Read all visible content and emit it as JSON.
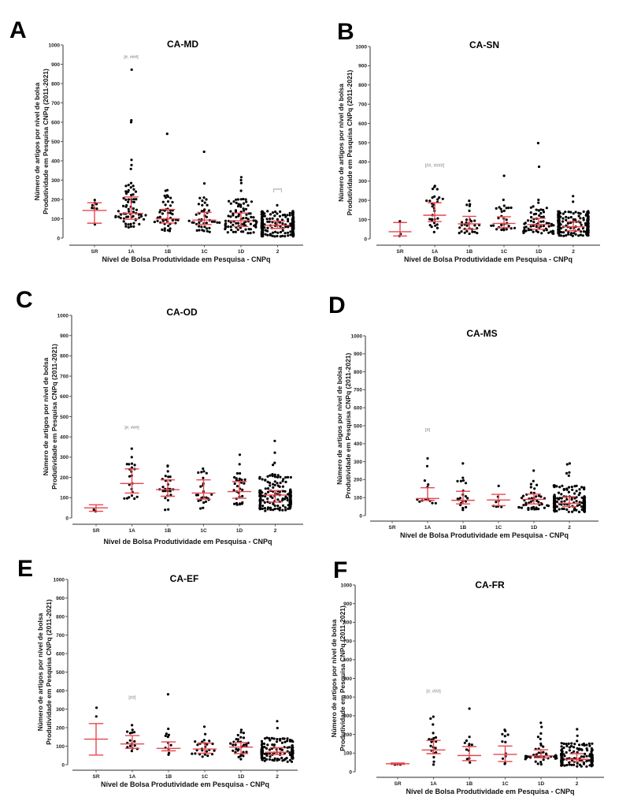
{
  "figure": {
    "y_axis_label_line1": "Número de artigos por nível de bolsa",
    "y_axis_label_line2": "Produtividade em Pesquisa CNPq (2011-2021)",
    "x_axis_label": "Nível de Bolsa Produtividade em Pesquisa - CNPq",
    "colors": {
      "points": "#000000",
      "error_bars": "#e8474f",
      "axis": "#555555",
      "annotation": "#777777"
    }
  },
  "chart_data": [
    {
      "panel": "A",
      "type": "scatter",
      "title": "CA-MD",
      "xlabel": "Nível de Bolsa Produtividade em Pesquisa - CNPq",
      "ylabel": "Número de artigos por nível de bolsa Produtividade em Pesquisa CNPq (2011-2021)",
      "categories": [
        "SR",
        "1A",
        "1B",
        "1C",
        "1D",
        "2"
      ],
      "ylim": [
        0,
        1000
      ],
      "yticks": [
        0,
        100,
        200,
        300,
        400,
        500,
        600,
        700,
        800,
        900,
        1000
      ],
      "median": [
        143,
        128,
        100,
        93,
        90,
        66
      ],
      "q1": [
        77,
        97,
        78,
        70,
        60,
        50
      ],
      "q3": [
        183,
        213,
        148,
        133,
        130,
        88
      ],
      "n_points": [
        8,
        70,
        50,
        45,
        90,
        300
      ],
      "outliers": {
        "1A": [
          872,
          610,
          600,
          405,
          378,
          358,
          285,
          275,
          270
        ],
        "1B": [
          540,
          248,
          245
        ],
        "1C": [
          447,
          283,
          210
        ],
        "1D": [
          315,
          300,
          285,
          245
        ],
        "2": [
          170
        ]
      },
      "min": [
        25,
        42,
        35,
        30,
        18,
        8
      ],
      "annotations": [
        {
          "category": "1A",
          "text": "[#, ###]",
          "y": 930
        },
        {
          "category": "2",
          "text": "[****]",
          "y": 240
        }
      ]
    },
    {
      "panel": "B",
      "type": "scatter",
      "title": "CA-SN",
      "xlabel": "Nível de Bolsa Produtividade em Pesquisa - CNPq",
      "ylabel": "Número de artigos por nível de bolsa Produtividade em Pesquisa CNPq (2011-2021)",
      "categories": [
        "SR",
        "1A",
        "1B",
        "1C",
        "1D",
        "2"
      ],
      "ylim": [
        0,
        1000
      ],
      "yticks": [
        0,
        100,
        200,
        300,
        400,
        500,
        600,
        700,
        800,
        900,
        1000
      ],
      "median": [
        37,
        123,
        78,
        80,
        75,
        63
      ],
      "q1": [
        15,
        90,
        50,
        58,
        50,
        42
      ],
      "q3": [
        85,
        188,
        117,
        115,
        107,
        90
      ],
      "n_points": [
        3,
        30,
        30,
        30,
        70,
        250
      ],
      "outliers": {
        "1A": [
          275,
          270,
          260,
          258,
          220
        ],
        "1B": [
          198,
          180
        ],
        "1C": [
          328,
          203,
          172
        ],
        "1D": [
          498,
          375,
          203,
          188
        ],
        "2": [
          222,
          193
        ]
      },
      "min": [
        15,
        35,
        22,
        42,
        25,
        15
      ],
      "annotations": [
        {
          "category": "1A",
          "text": "[##, ####]",
          "y": 375
        }
      ]
    },
    {
      "panel": "C",
      "type": "scatter",
      "title": "CA-OD",
      "xlabel": "Nível de Bolsa Produtividade em Pesquisa - CNPq",
      "ylabel": "Número de artigos por nível de bolsa Produtividade em Pesquisa CNPq (2011-2021)",
      "categories": [
        "SR",
        "1A",
        "1B",
        "1C",
        "1D",
        "2"
      ],
      "ylim": [
        0,
        1000
      ],
      "yticks": [
        0,
        100,
        200,
        300,
        400,
        500,
        600,
        700,
        800,
        900,
        1000
      ],
      "median": [
        50,
        170,
        140,
        123,
        130,
        113
      ],
      "q1": [
        33,
        123,
        107,
        93,
        97,
        78
      ],
      "q3": [
        65,
        242,
        188,
        188,
        180,
        135
      ],
      "n_points": [
        2,
        22,
        26,
        24,
        30,
        180
      ],
      "outliers": {
        "1A": [
          342,
          300,
          268
        ],
        "1B": [
          258,
          255,
          230
        ],
        "1C": [
          243,
          230
        ],
        "1D": [
          312,
          265,
          220
        ],
        "2": [
          380,
          322,
          272,
          262
        ]
      },
      "min": [
        33,
        78,
        30,
        40,
        65,
        33
      ],
      "annotations": [
        {
          "category": "1A",
          "text": "[#, ###]",
          "y": 440
        }
      ]
    },
    {
      "panel": "D",
      "type": "scatter",
      "title": "CA-MS",
      "xlabel": "Nível de Bolsa Produtividade em Pesquisa - CNPq",
      "ylabel": "Número de artigos por nível de bolsa Produtividade em Pesquisa CNPq (2011-2021)",
      "categories": [
        "SR",
        "1A",
        "1B",
        "1C",
        "1D",
        "2"
      ],
      "ylim": [
        0,
        1000
      ],
      "yticks": [
        0,
        100,
        200,
        300,
        400,
        500,
        600,
        700,
        800,
        900,
        1000
      ],
      "median": [
        null,
        95,
        85,
        87,
        90,
        68
      ],
      "q1": [
        null,
        85,
        65,
        55,
        65,
        50
      ],
      "q3": [
        null,
        155,
        135,
        118,
        120,
        105
      ],
      "n_points": [
        0,
        14,
        20,
        8,
        45,
        200
      ],
      "outliers": {
        "1A": [
          318,
          275
        ],
        "1B": [
          290,
          210,
          195
        ],
        "1C": [
          165
        ],
        "1D": [
          250,
          192,
          175
        ],
        "2": [
          290,
          285,
          240,
          235,
          222
        ]
      },
      "min": [
        null,
        68,
        25,
        45,
        28,
        20
      ],
      "annotations": [
        {
          "category": "1A",
          "text": "[#]",
          "y": 470
        }
      ]
    },
    {
      "panel": "E",
      "type": "scatter",
      "title": "CA-EF",
      "xlabel": "Nível de Bolsa Produtividade em Pesquisa - CNPq",
      "ylabel": "Número de artigos por nível de bolsa Produtividade em Pesquisa CNPq (2011-2021)",
      "categories": [
        "SR",
        "1A",
        "1B",
        "1C",
        "1D",
        "2"
      ],
      "ylim": [
        0,
        1000
      ],
      "yticks": [
        0,
        100,
        200,
        300,
        400,
        500,
        600,
        700,
        800,
        900,
        1000
      ],
      "median": [
        138,
        112,
        88,
        85,
        95,
        67
      ],
      "q1": [
        52,
        88,
        75,
        62,
        60,
        55
      ],
      "q3": [
        222,
        157,
        123,
        117,
        120,
        92
      ],
      "n_points": [
        2,
        16,
        12,
        26,
        32,
        180
      ],
      "outliers": {
        "1A": [
          213,
          188
        ],
        "1B": [
          380
        ],
        "1C": [
          205,
          165
        ],
        "1D": [
          188,
          175
        ],
        "2": [
          235,
          198
        ]
      },
      "min": [
        52,
        72,
        48,
        42,
        25,
        15
      ],
      "annotations": [
        {
          "category": "1A",
          "text": "[##]",
          "y": 355
        }
      ]
    },
    {
      "panel": "F",
      "type": "scatter",
      "title": "CA-FR",
      "xlabel": "Nível de Bolsa Produtividade em Pesquisa - CNPq",
      "ylabel": "Número de artigos por nível de bolsa Produtividade em Pesquisa CNPq (2011-2021)",
      "categories": [
        "SR",
        "1A",
        "1B",
        "1C",
        "1D",
        "2"
      ],
      "ylim": [
        0,
        1000
      ],
      "yticks": [
        0,
        100,
        200,
        300,
        400,
        500,
        600,
        700,
        800,
        900,
        1000
      ],
      "median": [
        43,
        117,
        87,
        93,
        85,
        67
      ],
      "q1": [
        40,
        97,
        60,
        55,
        75,
        55
      ],
      "q3": [
        47,
        168,
        135,
        138,
        118,
        97
      ],
      "n_points": [
        3,
        20,
        12,
        12,
        45,
        170
      ],
      "outliers": {
        "1A": [
          295,
          285,
          253,
          207
        ],
        "1B": [
          338
        ],
        "1C": [
          225,
          218
        ],
        "1D": [
          262,
          240,
          205
        ],
        "2": [
          228,
          193,
          165
        ]
      },
      "min": [
        38,
        38,
        25,
        42,
        33,
        28
      ],
      "annotations": [
        {
          "category": "1A",
          "text": "[#, ###]",
          "y": 425
        }
      ]
    }
  ]
}
